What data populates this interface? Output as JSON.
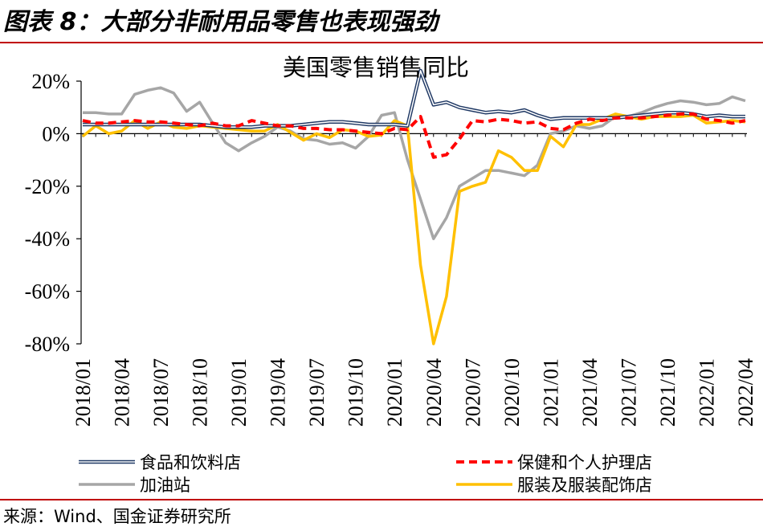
{
  "figure_title": "图表 8：大部分非耐用品零售也表现强劲",
  "source": "来源：Wind、国金证券研究所",
  "chart_data": {
    "type": "line",
    "title": "美国零售销售同比",
    "xlabel": "",
    "ylabel": "",
    "ylim": [
      -80,
      20
    ],
    "yticks": [
      20,
      0,
      -20,
      -40,
      -60,
      -80
    ],
    "ytick_labels": [
      "20%",
      "0%",
      "-20%",
      "-40%",
      "-60%",
      "-80%"
    ],
    "x": [
      "2018/01",
      "2018/02",
      "2018/03",
      "2018/04",
      "2018/05",
      "2018/06",
      "2018/07",
      "2018/08",
      "2018/09",
      "2018/10",
      "2018/11",
      "2018/12",
      "2019/01",
      "2019/02",
      "2019/03",
      "2019/04",
      "2019/05",
      "2019/06",
      "2019/07",
      "2019/08",
      "2019/09",
      "2019/10",
      "2019/11",
      "2019/12",
      "2020/01",
      "2020/02",
      "2020/03",
      "2020/04",
      "2020/05",
      "2020/06",
      "2020/07",
      "2020/08",
      "2020/09",
      "2020/10",
      "2020/11",
      "2020/12",
      "2021/01",
      "2021/02",
      "2021/03",
      "2021/04",
      "2021/05",
      "2021/06",
      "2021/07",
      "2021/08",
      "2021/09",
      "2021/10",
      "2021/11",
      "2021/12",
      "2022/01",
      "2022/02",
      "2022/03",
      "2022/04"
    ],
    "xtick_labels": [
      "2018/01",
      "2018/04",
      "2018/07",
      "2018/10",
      "2019/01",
      "2019/04",
      "2019/07",
      "2019/10",
      "2020/01",
      "2020/04",
      "2020/07",
      "2020/10",
      "2021/01",
      "2021/04",
      "2021/07",
      "2021/10",
      "2022/01",
      "2022/04"
    ],
    "series": [
      {
        "name": "食品和饮料店",
        "color": "#1f3864",
        "style": "double",
        "values": [
          3.5,
          3.5,
          3.5,
          3.5,
          3.5,
          3.5,
          3.5,
          3.5,
          3.5,
          3.5,
          3.0,
          2.5,
          2.5,
          2.5,
          3.0,
          3.0,
          3.0,
          3.5,
          4.0,
          4.5,
          4.5,
          4.0,
          3.5,
          3.5,
          3.5,
          3.0,
          24.0,
          11.0,
          12.0,
          10.0,
          9.0,
          8.0,
          8.5,
          8.0,
          9.0,
          7.0,
          5.5,
          6.0,
          6.0,
          6.0,
          6.0,
          6.0,
          6.5,
          7.0,
          7.5,
          8.0,
          8.0,
          7.5,
          6.5,
          7.0,
          6.5,
          6.5
        ]
      },
      {
        "name": "保健和个人护理店",
        "color": "#ff0000",
        "style": "dashed",
        "values": [
          5.0,
          4.0,
          4.0,
          4.5,
          5.0,
          4.5,
          4.5,
          4.0,
          3.5,
          3.0,
          4.0,
          3.0,
          3.0,
          5.0,
          4.0,
          3.0,
          3.0,
          2.0,
          2.0,
          1.5,
          1.5,
          1.0,
          0.5,
          0.0,
          2.0,
          1.5,
          6.5,
          -9.0,
          -8.0,
          -2.0,
          5.0,
          4.5,
          5.5,
          5.0,
          4.0,
          4.5,
          2.0,
          1.5,
          4.0,
          5.5,
          5.0,
          6.0,
          6.0,
          6.0,
          6.5,
          7.0,
          7.5,
          7.5,
          5.5,
          5.0,
          4.0,
          5.0
        ]
      },
      {
        "name": "加油站",
        "color": "#a6a6a6",
        "style": "solid",
        "values": [
          8.0,
          8.0,
          7.5,
          7.5,
          15.0,
          16.5,
          17.5,
          15.5,
          8.5,
          12.0,
          4.0,
          -3.5,
          -6.5,
          -3.5,
          -1.0,
          2.5,
          1.0,
          -2.0,
          -2.5,
          -4.0,
          -3.5,
          -5.5,
          -1.0,
          7.0,
          8.0,
          -10.0,
          -25.0,
          -40.0,
          -32.0,
          -20.0,
          -17.0,
          -14.0,
          -14.0,
          -15.0,
          -16.0,
          -12.0,
          0.0,
          1.0,
          3.0,
          2.0,
          3.0,
          6.5,
          6.5,
          8.0,
          10.0,
          11.5,
          12.5,
          12.0,
          11.0,
          11.5,
          14.0,
          12.5
        ]
      },
      {
        "name": "服装及服装配饰店",
        "color": "#ffc000",
        "style": "solid",
        "values": [
          -1.0,
          3.0,
          0.0,
          1.0,
          5.0,
          2.0,
          4.5,
          2.5,
          2.0,
          3.0,
          2.5,
          2.0,
          1.5,
          1.0,
          1.0,
          3.5,
          0.5,
          -2.5,
          0.0,
          -1.5,
          1.5,
          1.0,
          -1.0,
          -0.5,
          5.0,
          3.0,
          -50.0,
          -80.0,
          -62.0,
          -22.0,
          -20.0,
          -18.5,
          -6.5,
          -9.0,
          -14.0,
          -14.0,
          -1.0,
          -5.0,
          3.5,
          3.5,
          5.5,
          7.5,
          6.5,
          5.5,
          6.5,
          6.5,
          6.5,
          7.0,
          4.0,
          4.5,
          5.0,
          4.5
        ]
      }
    ],
    "legend": [
      "食品和饮料店",
      "保健和个人护理店",
      "加油站",
      "服装及服装配饰店"
    ],
    "legend_position": "bottom"
  }
}
